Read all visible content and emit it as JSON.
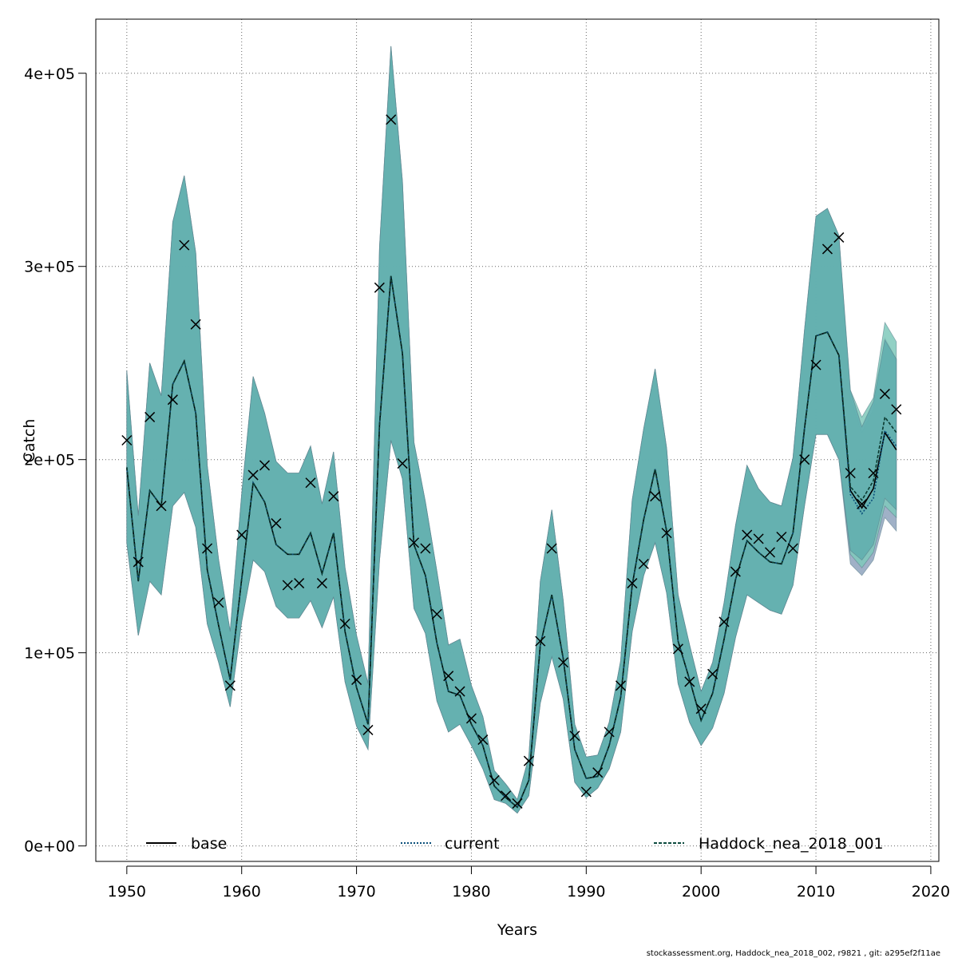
{
  "chart_data": {
    "type": "line",
    "xlabel": "Years",
    "ylabel": "Catch",
    "xlim": [
      1947.3,
      2020.7
    ],
    "ylim": [
      -8000,
      428000
    ],
    "x_ticks": [
      1950,
      1960,
      1970,
      1980,
      1990,
      2000,
      2010,
      2020
    ],
    "x_tick_labels": [
      "1950",
      "1960",
      "1970",
      "1980",
      "1990",
      "2000",
      "2010",
      "2020"
    ],
    "y_ticks": [
      0,
      100000,
      200000,
      300000,
      400000
    ],
    "y_tick_labels": [
      "0e+00",
      "1e+05",
      "2e+05",
      "3e+05",
      "4e+05"
    ],
    "grid": true,
    "legend_position": "bottom",
    "colors": {
      "band_base": "#8fa3bd",
      "band_current": "#7fc9bb",
      "band_main": "#5fadae",
      "line": "#000000",
      "grid": "#666666"
    },
    "years": [
      1950,
      1951,
      1952,
      1953,
      1954,
      1955,
      1956,
      1957,
      1958,
      1959,
      1960,
      1961,
      1962,
      1963,
      1964,
      1965,
      1966,
      1967,
      1968,
      1969,
      1970,
      1971,
      1972,
      1973,
      1974,
      1975,
      1976,
      1977,
      1978,
      1979,
      1980,
      1981,
      1982,
      1983,
      1984,
      1985,
      1986,
      1987,
      1988,
      1989,
      1990,
      1991,
      1992,
      1993,
      1994,
      1995,
      1996,
      1997,
      1998,
      1999,
      2000,
      2001,
      2002,
      2003,
      2004,
      2005,
      2006,
      2007,
      2008,
      2009,
      2010,
      2011,
      2012,
      2013,
      2014,
      2015,
      2016,
      2017
    ],
    "observed": [
      210000,
      147000,
      222000,
      176000,
      231000,
      311000,
      270000,
      154000,
      126000,
      83000,
      161000,
      192000,
      197000,
      167000,
      135000,
      136000,
      188000,
      136000,
      181000,
      115000,
      86000,
      60000,
      289000,
      376000,
      198000,
      157000,
      154000,
      120000,
      88000,
      80000,
      66000,
      55000,
      34000,
      26000,
      22000,
      44000,
      106000,
      154000,
      95000,
      57000,
      28000,
      38000,
      59000,
      83000,
      136000,
      146000,
      181000,
      162000,
      102000,
      85000,
      71000,
      89000,
      116000,
      142000,
      161000,
      159000,
      152000,
      160000,
      154000,
      200000,
      249000,
      309000,
      315000,
      193000,
      177000,
      193000,
      234000,
      226000
    ],
    "series": [
      {
        "name": "base",
        "estimate": [
          196000,
          137000,
          184000,
          176000,
          239000,
          251000,
          224000,
          143000,
          114000,
          86000,
          138000,
          188000,
          178000,
          156000,
          151000,
          151000,
          162000,
          141000,
          162000,
          111000,
          82000,
          63000,
          218000,
          295000,
          255000,
          156000,
          140000,
          105000,
          80000,
          78000,
          63000,
          52000,
          31000,
          25000,
          20000,
          34000,
          104000,
          130000,
          97000,
          50000,
          35000,
          36000,
          52000,
          77000,
          135000,
          169000,
          195000,
          163000,
          106000,
          86000,
          65000,
          79000,
          107000,
          138000,
          158000,
          152000,
          147000,
          146000,
          162000,
          216000,
          264000,
          266000,
          254000,
          184000,
          175000,
          185000,
          214000,
          205000
        ],
        "lower": [
          157000,
          109000,
          137000,
          130000,
          176000,
          183000,
          165000,
          115000,
          95000,
          72000,
          116000,
          148000,
          142000,
          124000,
          118000,
          118000,
          127000,
          113000,
          129000,
          85000,
          62000,
          50000,
          148000,
          210000,
          190000,
          123000,
          110000,
          75000,
          59000,
          63000,
          52000,
          40000,
          24000,
          22000,
          17000,
          26000,
          74000,
          98000,
          76000,
          33000,
          25000,
          30000,
          40000,
          59000,
          111000,
          140000,
          157000,
          131000,
          84000,
          64000,
          52000,
          61000,
          79000,
          108000,
          130000,
          126000,
          122000,
          120000,
          135000,
          176000,
          213000,
          213000,
          200000,
          146000,
          140000,
          148000,
          170000,
          163000
        ],
        "upper": [
          246000,
          171000,
          250000,
          233000,
          323000,
          347000,
          307000,
          197000,
          148000,
          111000,
          182000,
          243000,
          224000,
          199000,
          193000,
          193000,
          207000,
          177000,
          204000,
          144000,
          109000,
          84000,
          310000,
          414000,
          344000,
          209000,
          178000,
          142000,
          104000,
          107000,
          83000,
          67000,
          39000,
          32000,
          24000,
          46000,
          137000,
          174000,
          127000,
          63000,
          46000,
          47000,
          64000,
          96000,
          179000,
          216000,
          247000,
          206000,
          130000,
          104000,
          80000,
          95000,
          126000,
          166000,
          197000,
          185000,
          178000,
          176000,
          201000,
          267000,
          326000,
          330000,
          316000,
          232000,
          214000,
          226000,
          263000,
          252000
        ]
      },
      {
        "name": "current",
        "estimate": [
          196000,
          137000,
          184000,
          176000,
          239000,
          251000,
          224000,
          143000,
          114000,
          86000,
          138000,
          188000,
          178000,
          156000,
          151000,
          151000,
          162000,
          141000,
          162000,
          111000,
          82000,
          63000,
          218000,
          295000,
          255000,
          156000,
          140000,
          105000,
          80000,
          78000,
          63000,
          52000,
          31000,
          25000,
          20000,
          34000,
          104000,
          130000,
          97000,
          50000,
          35000,
          36000,
          52000,
          77000,
          135000,
          169000,
          195000,
          163000,
          106000,
          86000,
          65000,
          79000,
          107000,
          138000,
          158000,
          152000,
          147000,
          146000,
          162000,
          216000,
          264000,
          266000,
          254000,
          182000,
          172000,
          180000,
          215000,
          207000
        ],
        "lower": [
          157000,
          109000,
          137000,
          130000,
          176000,
          183000,
          165000,
          115000,
          95000,
          72000,
          116000,
          148000,
          142000,
          124000,
          118000,
          118000,
          127000,
          113000,
          129000,
          85000,
          62000,
          50000,
          148000,
          210000,
          190000,
          123000,
          110000,
          75000,
          59000,
          63000,
          52000,
          40000,
          24000,
          22000,
          17000,
          26000,
          74000,
          98000,
          76000,
          33000,
          25000,
          30000,
          40000,
          59000,
          111000,
          140000,
          157000,
          131000,
          84000,
          64000,
          52000,
          61000,
          79000,
          108000,
          130000,
          126000,
          122000,
          120000,
          135000,
          176000,
          213000,
          213000,
          200000,
          151000,
          144000,
          152000,
          176000,
          170000
        ],
        "upper": [
          246000,
          171000,
          250000,
          233000,
          323000,
          347000,
          307000,
          197000,
          148000,
          111000,
          182000,
          243000,
          224000,
          199000,
          193000,
          193000,
          207000,
          177000,
          204000,
          144000,
          109000,
          84000,
          310000,
          414000,
          344000,
          209000,
          178000,
          142000,
          104000,
          107000,
          83000,
          67000,
          39000,
          32000,
          24000,
          46000,
          137000,
          174000,
          127000,
          63000,
          46000,
          47000,
          64000,
          96000,
          179000,
          216000,
          247000,
          206000,
          130000,
          104000,
          80000,
          95000,
          126000,
          166000,
          197000,
          185000,
          178000,
          176000,
          201000,
          267000,
          326000,
          330000,
          316000,
          236000,
          222000,
          232000,
          271000,
          261000
        ]
      },
      {
        "name": "Haddock_nea_2018_001",
        "estimate": [
          196000,
          137000,
          184000,
          176000,
          239000,
          251000,
          224000,
          143000,
          114000,
          86000,
          138000,
          188000,
          178000,
          156000,
          151000,
          151000,
          162000,
          141000,
          162000,
          111000,
          82000,
          63000,
          218000,
          295000,
          255000,
          156000,
          140000,
          105000,
          80000,
          78000,
          63000,
          52000,
          31000,
          25000,
          20000,
          34000,
          104000,
          130000,
          97000,
          50000,
          35000,
          36000,
          52000,
          77000,
          135000,
          169000,
          195000,
          163000,
          106000,
          86000,
          65000,
          79000,
          107000,
          138000,
          158000,
          152000,
          147000,
          146000,
          162000,
          216000,
          264000,
          266000,
          254000,
          186000,
          179000,
          189000,
          222000,
          214000
        ],
        "lower": [
          157000,
          109000,
          137000,
          130000,
          176000,
          183000,
          165000,
          115000,
          95000,
          72000,
          116000,
          148000,
          142000,
          124000,
          118000,
          118000,
          127000,
          113000,
          129000,
          85000,
          62000,
          50000,
          148000,
          210000,
          190000,
          123000,
          110000,
          75000,
          59000,
          63000,
          52000,
          40000,
          24000,
          22000,
          17000,
          26000,
          74000,
          98000,
          76000,
          33000,
          25000,
          30000,
          40000,
          59000,
          111000,
          140000,
          157000,
          131000,
          84000,
          64000,
          52000,
          61000,
          79000,
          108000,
          130000,
          126000,
          122000,
          120000,
          135000,
          176000,
          213000,
          213000,
          200000,
          153000,
          148000,
          156000,
          180000,
          174000
        ],
        "upper": [
          246000,
          171000,
          250000,
          233000,
          323000,
          347000,
          307000,
          197000,
          148000,
          111000,
          182000,
          243000,
          224000,
          199000,
          193000,
          193000,
          207000,
          177000,
          204000,
          144000,
          109000,
          84000,
          310000,
          414000,
          344000,
          209000,
          178000,
          142000,
          104000,
          107000,
          83000,
          67000,
          39000,
          32000,
          24000,
          46000,
          137000,
          174000,
          127000,
          63000,
          46000,
          47000,
          64000,
          96000,
          179000,
          216000,
          247000,
          206000,
          130000,
          104000,
          80000,
          95000,
          126000,
          166000,
          197000,
          185000,
          178000,
          176000,
          201000,
          267000,
          326000,
          330000,
          316000,
          236000,
          217000,
          230000,
          262000,
          252000
        ]
      }
    ],
    "legend": [
      {
        "label": "base",
        "style": "solid"
      },
      {
        "label": "current",
        "style": "dotted"
      },
      {
        "label": "Haddock_nea_2018_001",
        "style": "dashed"
      }
    ],
    "footer": "stockassessment.org, Haddock_nea_2018_002, r9821 , git: a295ef2f11ae"
  }
}
